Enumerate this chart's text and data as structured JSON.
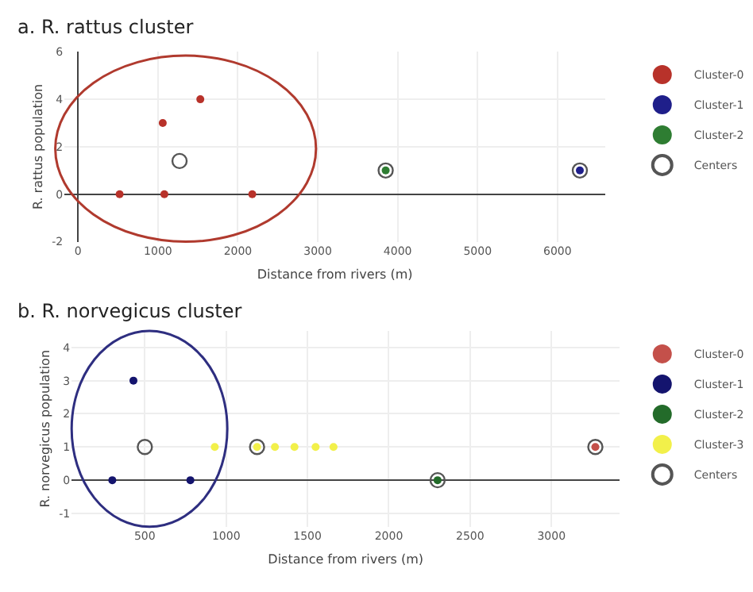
{
  "chart_data": [
    {
      "type": "scatter",
      "title": "a. R. rattus cluster",
      "xlabel": "Distance from rivers (m)",
      "ylabel": "R. rattus population",
      "series": [
        {
          "name": "Cluster-0",
          "color": "#b8322a",
          "x": [
            520,
            1080,
            2180,
            1060,
            1530
          ],
          "values": [
            0,
            0,
            0,
            3,
            4
          ]
        },
        {
          "name": "Cluster-1",
          "color": "#1f1f8a",
          "x": [
            6280
          ],
          "values": [
            1
          ]
        },
        {
          "name": "Cluster-2",
          "color": "#2e7d32",
          "x": [
            3850
          ],
          "values": [
            1
          ]
        },
        {
          "name": "Centers",
          "color": "#555555",
          "marker": "circle-open",
          "x": [
            1270,
            3850,
            6280
          ],
          "values": [
            1.4,
            1,
            1
          ]
        }
      ],
      "xlim": [
        -170,
        6600
      ],
      "xticks": [
        0,
        1000,
        2000,
        3000,
        4000,
        5000,
        6000
      ],
      "ylim": [
        -2,
        6
      ],
      "yticks": [
        -2,
        0,
        2,
        4,
        6
      ],
      "grid": true,
      "legend": "top right"
    },
    {
      "type": "scatter",
      "title": "b. R. norvegicus cluster",
      "xlabel": "Distance from rivers (m)",
      "ylabel": "R. norvegicus population",
      "series": [
        {
          "name": "Cluster-0",
          "color": "#c4504a",
          "x": [
            3270
          ],
          "values": [
            1
          ]
        },
        {
          "name": "Cluster-1",
          "color": "#14146e",
          "x": [
            300,
            430,
            780
          ],
          "values": [
            0,
            3,
            0
          ]
        },
        {
          "name": "Cluster-2",
          "color": "#236b2a",
          "x": [
            2300
          ],
          "values": [
            0
          ]
        },
        {
          "name": "Cluster-3",
          "color": "#f2f04a",
          "x": [
            930,
            1190,
            1300,
            1420,
            1550,
            1660
          ],
          "values": [
            1,
            1,
            1,
            1,
            1,
            1
          ]
        },
        {
          "name": "Centers",
          "color": "#555555",
          "marker": "circle-open",
          "x": [
            500,
            1190,
            2300,
            3270
          ],
          "values": [
            1,
            1,
            0,
            1
          ]
        }
      ],
      "xlim": [
        50,
        3420
      ],
      "xticks": [
        500,
        1000,
        1500,
        2000,
        2500,
        3000
      ],
      "ylim": [
        -1.4,
        4.5
      ],
      "yticks": [
        -1,
        0,
        1,
        2,
        3,
        4
      ],
      "grid": true,
      "legend": "top right"
    }
  ]
}
